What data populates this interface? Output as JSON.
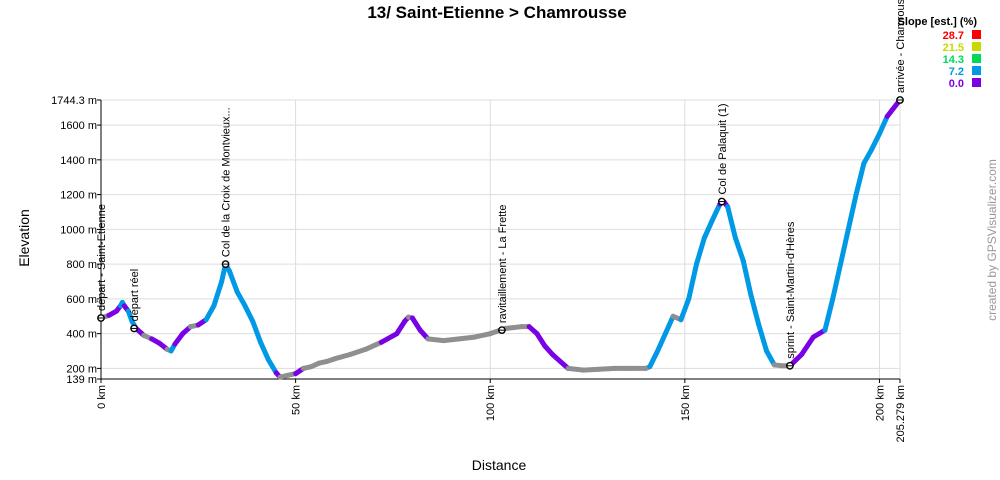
{
  "chart_data": {
    "type": "line",
    "title": "13/ Saint-Etienne > Chamrousse",
    "xlabel": "Distance",
    "ylabel": "Elevation",
    "xlim": [
      0,
      205.279
    ],
    "ylim": [
      139,
      1744.3
    ],
    "x_ticks": [
      {
        "value": 0,
        "label": "0 km"
      },
      {
        "value": 50,
        "label": "50 km"
      },
      {
        "value": 100,
        "label": "100 km"
      },
      {
        "value": 150,
        "label": "150 km"
      },
      {
        "value": 200,
        "label": "200 km"
      },
      {
        "value": 205.279,
        "label": "205.279 km"
      }
    ],
    "y_ticks": [
      {
        "value": 139,
        "label": "139 m"
      },
      {
        "value": 200,
        "label": "200 m"
      },
      {
        "value": 400,
        "label": "400 m"
      },
      {
        "value": 600,
        "label": "600 m"
      },
      {
        "value": 800,
        "label": "800 m"
      },
      {
        "value": 1000,
        "label": "1000 m"
      },
      {
        "value": 1200,
        "label": "1200 m"
      },
      {
        "value": 1400,
        "label": "1400 m"
      },
      {
        "value": 1600,
        "label": "1600 m"
      },
      {
        "value": 1744.3,
        "label": "1744.3 m"
      }
    ],
    "grid": true,
    "series": [
      {
        "points": [
          [
            0,
            490
          ],
          [
            2,
            505
          ],
          [
            4,
            530
          ],
          [
            5,
            560
          ],
          [
            5.5,
            580
          ],
          [
            6,
            560
          ],
          [
            7,
            530
          ],
          [
            8,
            470
          ],
          [
            9,
            430
          ],
          [
            11,
            390
          ],
          [
            13,
            370
          ],
          [
            15,
            345
          ],
          [
            17,
            310
          ],
          [
            18,
            300
          ],
          [
            19,
            340
          ],
          [
            21,
            400
          ],
          [
            23,
            440
          ],
          [
            25,
            450
          ],
          [
            27,
            480
          ],
          [
            29,
            560
          ],
          [
            31,
            700
          ],
          [
            32,
            800
          ],
          [
            33,
            760
          ],
          [
            35,
            640
          ],
          [
            37,
            560
          ],
          [
            39,
            470
          ],
          [
            41,
            350
          ],
          [
            43,
            250
          ],
          [
            45,
            175
          ],
          [
            46,
            150
          ],
          [
            48,
            160
          ],
          [
            50,
            170
          ],
          [
            52,
            200
          ],
          [
            54,
            210
          ],
          [
            56,
            230
          ],
          [
            58,
            240
          ],
          [
            60,
            255
          ],
          [
            64,
            280
          ],
          [
            68,
            310
          ],
          [
            72,
            350
          ],
          [
            76,
            400
          ],
          [
            78,
            470
          ],
          [
            79,
            495
          ],
          [
            80,
            490
          ],
          [
            82,
            420
          ],
          [
            84,
            370
          ],
          [
            88,
            360
          ],
          [
            92,
            370
          ],
          [
            96,
            380
          ],
          [
            100,
            400
          ],
          [
            104,
            430
          ],
          [
            108,
            440
          ],
          [
            110,
            440
          ],
          [
            112,
            400
          ],
          [
            114,
            330
          ],
          [
            116,
            280
          ],
          [
            118,
            240
          ],
          [
            120,
            200
          ],
          [
            124,
            190
          ],
          [
            128,
            195
          ],
          [
            132,
            200
          ],
          [
            136,
            200
          ],
          [
            140,
            200
          ],
          [
            141,
            210
          ],
          [
            143,
            300
          ],
          [
            145,
            400
          ],
          [
            147,
            500
          ],
          [
            149,
            480
          ],
          [
            151,
            600
          ],
          [
            153,
            800
          ],
          [
            155,
            950
          ],
          [
            157,
            1050
          ],
          [
            159,
            1145
          ],
          [
            160,
            1160
          ],
          [
            161,
            1130
          ],
          [
            163,
            950
          ],
          [
            165,
            820
          ],
          [
            167,
            620
          ],
          [
            169,
            450
          ],
          [
            171,
            300
          ],
          [
            173,
            220
          ],
          [
            175,
            215
          ],
          [
            177,
            215
          ],
          [
            180,
            280
          ],
          [
            183,
            380
          ],
          [
            186,
            420
          ],
          [
            188,
            600
          ],
          [
            190,
            800
          ],
          [
            192,
            1000
          ],
          [
            194,
            1200
          ],
          [
            196,
            1380
          ],
          [
            198,
            1460
          ],
          [
            200,
            1550
          ],
          [
            202,
            1650
          ],
          [
            205.279,
            1744.3
          ]
        ]
      }
    ],
    "markers": [
      {
        "km": 0,
        "elev": 490,
        "label": "départ - Saint-Etienne"
      },
      {
        "km": 8.5,
        "elev": 430,
        "label": "départ réel"
      },
      {
        "km": 32,
        "elev": 800,
        "label": "Col de la Croix de Montvieux..."
      },
      {
        "km": 103,
        "elev": 420,
        "label": "ravitaillement - La Frette"
      },
      {
        "km": 159.5,
        "elev": 1160,
        "label": "Col de Palaquit (1)"
      },
      {
        "km": 177,
        "elev": 215,
        "label": "sprint - Saint-Martin-d'Hères"
      },
      {
        "km": 205.279,
        "elev": 1744.3,
        "label": "arrivée - Chamrousse"
      }
    ],
    "legend": {
      "title": "Slope [est.] (%)",
      "placement": "top-right",
      "entries": [
        {
          "value": "28.7",
          "color": "#ff0000"
        },
        {
          "value": "21.5",
          "color": "#c8d800"
        },
        {
          "value": "14.3",
          "color": "#00d85a"
        },
        {
          "value": "7.2",
          "color": "#0099e6"
        },
        {
          "value": "0.0",
          "color": "#7a00e6"
        }
      ]
    }
  },
  "credit": "created by GPSVisualizer.com"
}
